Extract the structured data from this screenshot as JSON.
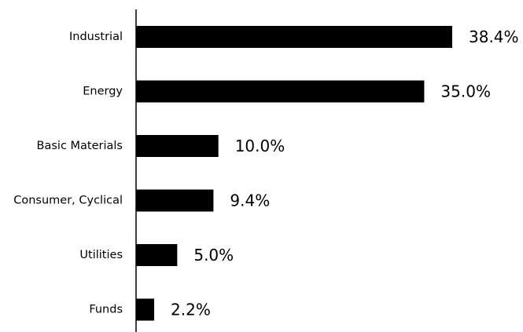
{
  "chart_data": {
    "type": "bar",
    "orientation": "horizontal",
    "categories": [
      "Industrial",
      "Energy",
      "Basic Materials",
      "Consumer, Cyclical",
      "Utilities",
      "Funds"
    ],
    "values": [
      38.4,
      35.0,
      10.0,
      9.4,
      5.0,
      2.2
    ],
    "value_labels": [
      "38.4%",
      "35.0%",
      "10.0%",
      "9.4%",
      "5.0%",
      "2.2%"
    ],
    "unit": "%",
    "title": "",
    "xlabel": "",
    "ylabel": "",
    "xlim": [
      0,
      38.4
    ],
    "grid": false,
    "legend": "none",
    "bar_color": "#000000"
  }
}
